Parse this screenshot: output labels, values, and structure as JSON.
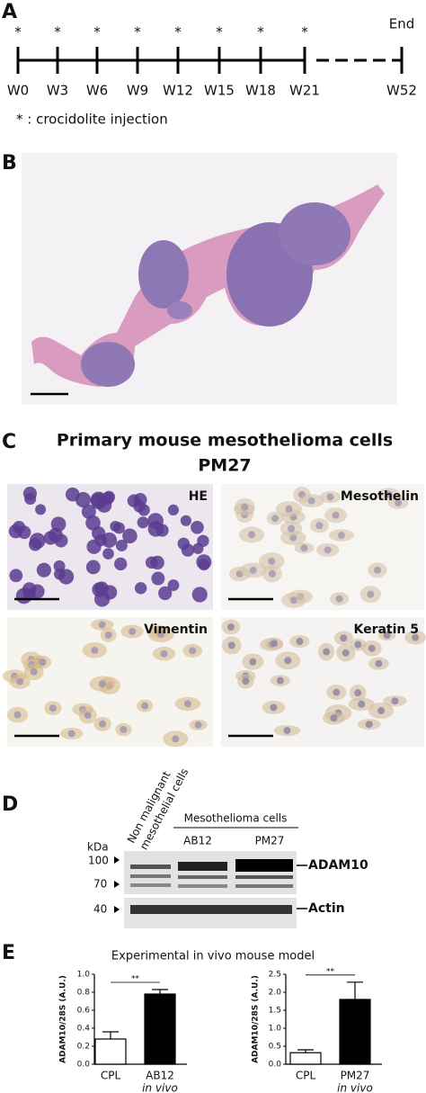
{
  "panel_a": {
    "label": "A",
    "injection_mark": "*",
    "weeks": [
      "W0",
      "W3",
      "W6",
      "W9",
      "W12",
      "W15",
      "W18",
      "W21"
    ],
    "end_week": "W52",
    "end_label": "End",
    "legend": "* : crocidolite injection"
  },
  "panel_b": {
    "label": "B"
  },
  "panel_c": {
    "label": "C",
    "title": "Primary mouse mesothelioma cells",
    "subtitle": "PM27",
    "images": [
      "HE",
      "Mesothelin",
      "Vimentin",
      "Keratin 5"
    ]
  },
  "panel_d": {
    "label": "D",
    "lane_label": "Non malignant mesothelial cells",
    "group_label": "Mesothelioma cells",
    "lanes": [
      "AB12",
      "PM27"
    ],
    "unit": "kDa",
    "markers": [
      "100",
      "70",
      "40"
    ],
    "bands": [
      "ADAM10",
      "Actin"
    ]
  },
  "panel_e": {
    "label": "E",
    "title": "Experimental in vivo mouse model"
  },
  "chart_data": [
    {
      "type": "bar",
      "ylabel": "ADAM10/28S (A.U.)",
      "categories": [
        "CPL",
        "AB12"
      ],
      "category_sublabels": [
        null,
        "in vivo"
      ],
      "values": [
        0.28,
        0.78
      ],
      "errors": [
        0.08,
        0.05
      ],
      "colors": [
        "#ffffff",
        "#000000"
      ],
      "significance": "**",
      "ylim": [
        0,
        1.0
      ],
      "yticks": [
        {
          "value": 0,
          "label": "0.0"
        },
        {
          "value": 0.2,
          "label": "0.2"
        },
        {
          "value": 0.4,
          "label": "0.4"
        },
        {
          "value": 0.6,
          "label": "0.6"
        },
        {
          "value": 0.8,
          "label": "0.8"
        },
        {
          "value": 1.0,
          "label": "1.0"
        }
      ]
    },
    {
      "type": "bar",
      "ylabel": "ADAM10/28S (A.U.)",
      "categories": [
        "CPL",
        "PM27"
      ],
      "category_sublabels": [
        null,
        "in vivo"
      ],
      "values": [
        0.32,
        1.8
      ],
      "errors": [
        0.08,
        0.48
      ],
      "colors": [
        "#ffffff",
        "#000000"
      ],
      "significance": "**",
      "ylim": [
        0,
        2.5
      ],
      "yticks": [
        {
          "value": 0,
          "label": "0.0"
        },
        {
          "value": 0.5,
          "label": "0.5"
        },
        {
          "value": 1.0,
          "label": "1.0"
        },
        {
          "value": 1.5,
          "label": "1.5"
        },
        {
          "value": 2.0,
          "label": "2.0"
        },
        {
          "value": 2.5,
          "label": "2.5"
        }
      ]
    }
  ]
}
